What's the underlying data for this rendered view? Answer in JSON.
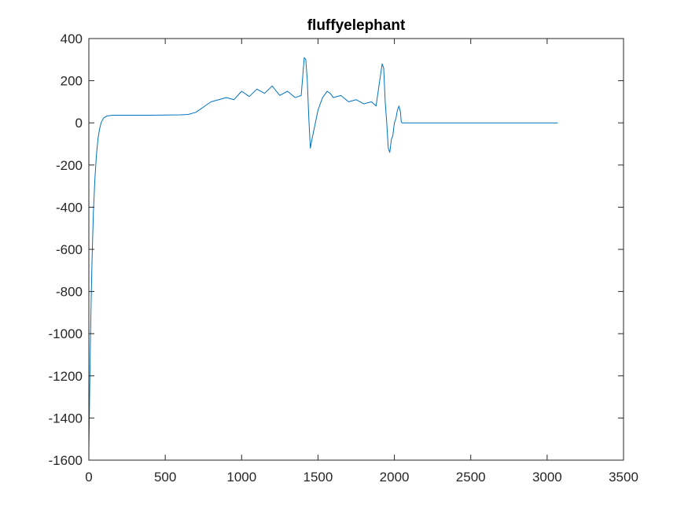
{
  "chart_data": {
    "type": "line",
    "title": "fluffyelephant",
    "xlabel": "",
    "ylabel": "",
    "xlim": [
      0,
      3500
    ],
    "ylim": [
      -1600,
      400
    ],
    "xticks": [
      0,
      500,
      1000,
      1500,
      2000,
      2500,
      3000,
      3500
    ],
    "xtick_labels": [
      "0",
      "500",
      "1000",
      "1500",
      "2000",
      "2500",
      "3000",
      "3500"
    ],
    "yticks": [
      400,
      200,
      0,
      -200,
      -400,
      -600,
      -800,
      -1000,
      -1200,
      -1400,
      -1600
    ],
    "ytick_labels": [
      "400",
      "200",
      "0",
      "-200",
      "-400",
      "-600",
      "-800",
      "-1000",
      "-1200",
      "-1400",
      "-1600"
    ],
    "grid": false,
    "legend": "none",
    "line_color": "#0072BD",
    "series": [
      {
        "x": [
          0,
          5,
          10,
          15,
          20,
          25,
          30,
          40,
          50,
          60,
          70,
          80,
          90,
          100,
          120,
          140,
          160,
          200,
          300,
          400,
          500,
          600,
          650,
          700,
          750,
          800,
          850,
          900,
          950,
          1000,
          1050,
          1100,
          1150,
          1200,
          1250,
          1300,
          1350,
          1390,
          1410,
          1420,
          1430,
          1440,
          1450,
          1460,
          1480,
          1500,
          1530,
          1560,
          1580,
          1600,
          1650,
          1700,
          1750,
          1800,
          1850,
          1880,
          1900,
          1920,
          1930,
          1940,
          1950,
          1960,
          1970,
          1980,
          1990,
          2000,
          2010,
          2020,
          2030,
          2040,
          2045,
          2050,
          2100,
          2500,
          3000,
          3070
        ],
        "y": [
          -1560,
          -1300,
          -1050,
          -850,
          -680,
          -540,
          -420,
          -260,
          -150,
          -75,
          -30,
          0,
          15,
          25,
          33,
          35,
          36,
          36,
          36,
          36,
          37,
          38,
          40,
          50,
          75,
          100,
          110,
          120,
          110,
          150,
          125,
          160,
          140,
          175,
          130,
          150,
          120,
          130,
          310,
          300,
          200,
          20,
          -120,
          -80,
          -10,
          60,
          120,
          150,
          140,
          120,
          130,
          100,
          110,
          90,
          100,
          80,
          180,
          280,
          260,
          100,
          0,
          -120,
          -140,
          -80,
          -60,
          0,
          20,
          60,
          80,
          50,
          5,
          0,
          0,
          0,
          0,
          0
        ]
      }
    ]
  }
}
